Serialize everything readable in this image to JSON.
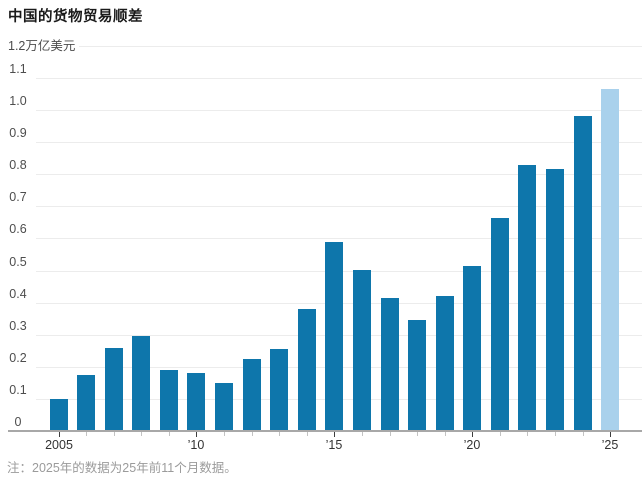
{
  "title": "中国的货物贸易顺差",
  "note": "注：2025年的数据为25年前11个月数据。",
  "chart_data": {
    "type": "bar",
    "title": "中国的货物贸易顺差",
    "unit": "万亿美元",
    "unit_top_label": "1.2万亿美元",
    "categories": [
      2005,
      2006,
      2007,
      2008,
      2009,
      2010,
      2011,
      2012,
      2013,
      2014,
      2015,
      2016,
      2017,
      2018,
      2019,
      2020,
      2021,
      2022,
      2023,
      2024,
      2025
    ],
    "values": [
      0.1,
      0.175,
      0.26,
      0.295,
      0.19,
      0.18,
      0.15,
      0.225,
      0.255,
      0.38,
      0.59,
      0.5,
      0.415,
      0.345,
      0.42,
      0.515,
      0.665,
      0.83,
      0.815,
      0.98,
      1.065
    ],
    "highlight_year": 2025,
    "ylim": [
      0,
      1.2
    ],
    "y_tick_step": 0.1,
    "y_zero_label": "0",
    "grid": true,
    "legend_position": "none",
    "x_tick_labels": [
      {
        "year": 2005,
        "label": "2005"
      },
      {
        "year": 2010,
        "label": "’10"
      },
      {
        "year": 2015,
        "label": "’15"
      },
      {
        "year": 2020,
        "label": "’20"
      },
      {
        "year": 2025,
        "label": "’25"
      }
    ],
    "colors": {
      "bar": "#0e76ab",
      "highlight_bar": "#a9d1ec",
      "gridline": "#ececec",
      "axis_line": "#a8a8a8",
      "major_tick": "#3d3d3d",
      "minor_tick": "#c3c3c3",
      "title_text": "#1a1a1a",
      "axis_label_text": "#4d4d4d",
      "x_label_text": "#333333",
      "note_text": "#9b9b9b"
    }
  }
}
